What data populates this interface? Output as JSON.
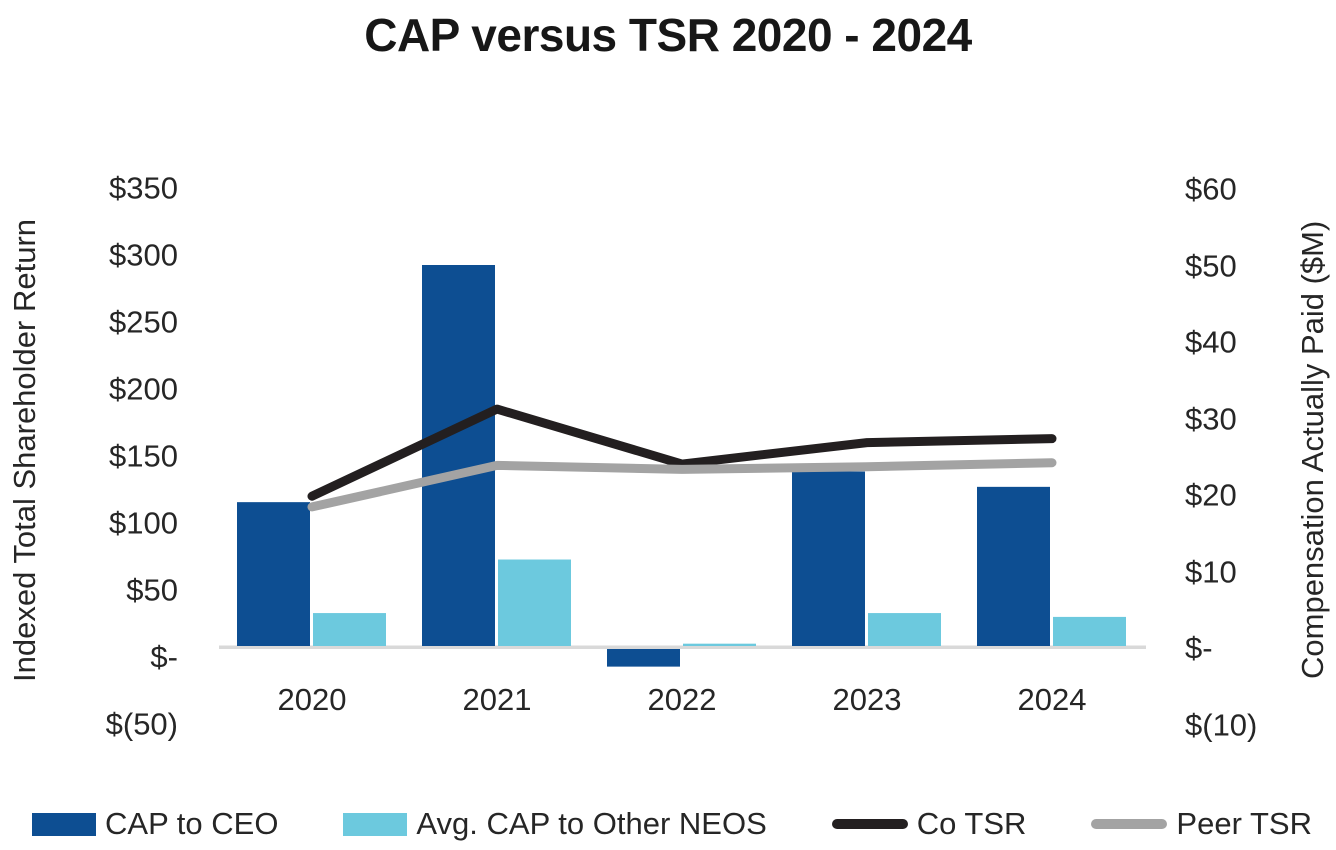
{
  "title": "CAP versus TSR 2020 - 2024",
  "left_axis": {
    "title": "Indexed Total Shareholder Return",
    "ticks": [
      "$350",
      "$300",
      "$250",
      "$200",
      "$150",
      "$100",
      "$50",
      "$-",
      "$(50)"
    ]
  },
  "right_axis": {
    "title": "Compensation Actually Paid ($M)",
    "ticks": [
      "$60",
      "$50",
      "$40",
      "$30",
      "$20",
      "$10",
      "$-",
      "$(10)"
    ]
  },
  "x_axis": {
    "labels": [
      "2020",
      "2021",
      "2022",
      "2023",
      "2024"
    ]
  },
  "legend": {
    "items": [
      {
        "label": "CAP to CEO",
        "swatch": "bar",
        "color": "#0D4E92"
      },
      {
        "label": "Avg. CAP to Other NEOS",
        "swatch": "bar",
        "color": "#6CC9DE"
      },
      {
        "label": "Co TSR",
        "swatch": "line",
        "color": "#231F20"
      },
      {
        "label": "Peer TSR",
        "swatch": "line",
        "color": "#A3A3A3"
      }
    ]
  },
  "chart_data": {
    "type": "bar",
    "subtype": "combo-bar-line-dual-axis",
    "title": "CAP versus TSR 2020 - 2024",
    "categories": [
      "2020",
      "2021",
      "2022",
      "2023",
      "2024"
    ],
    "series": [
      {
        "name": "CAP to CEO",
        "kind": "bar",
        "axis": "right",
        "color": "#0D4E92",
        "values": [
          19,
          50,
          -2.5,
          23,
          21
        ]
      },
      {
        "name": "Avg. CAP to Other NEOS",
        "kind": "bar",
        "axis": "right",
        "color": "#6CC9DE",
        "values": [
          4.5,
          11.5,
          0.5,
          4.5,
          4
        ]
      },
      {
        "name": "Co TSR",
        "kind": "line",
        "axis": "left",
        "color": "#231F20",
        "values": [
          120,
          185,
          144,
          160,
          163
        ]
      },
      {
        "name": "Peer TSR",
        "kind": "line",
        "axis": "left",
        "color": "#A3A3A3",
        "values": [
          112,
          143,
          140,
          142,
          145
        ]
      }
    ],
    "left_ylabel": "Indexed Total Shareholder Return",
    "right_ylabel": "Compensation Actually Paid ($M)",
    "left_ylim": [
      -50,
      350
    ],
    "left_tick_step": 50,
    "right_ylim": [
      -10,
      60
    ],
    "right_tick_step": 10,
    "grid": false,
    "baseline_color": "#D9D9D9",
    "legend_position": "bottom"
  }
}
